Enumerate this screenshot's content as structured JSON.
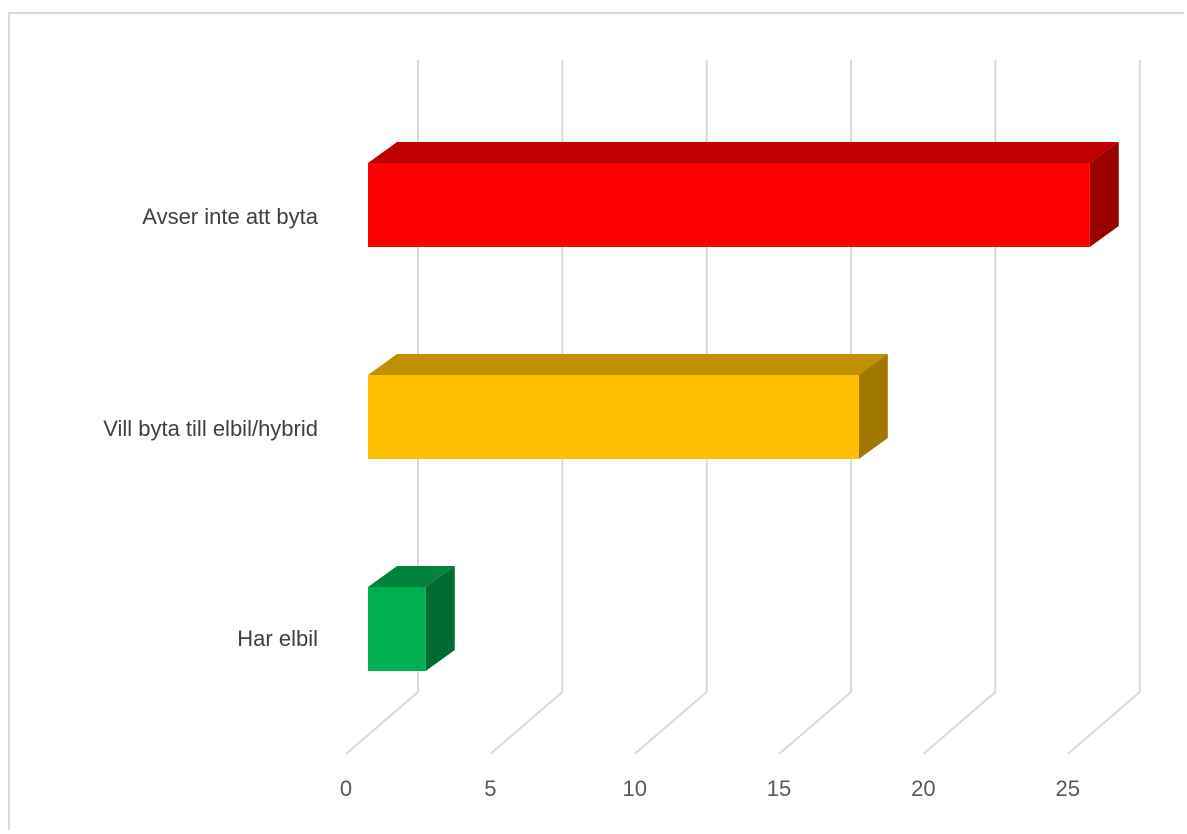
{
  "chart_data": {
    "type": "bar",
    "orientation": "horizontal",
    "style": "3d",
    "categories": [
      "Avser inte att byta",
      "Vill byta till elbil/hybrid",
      "Har elbil"
    ],
    "values": [
      25,
      17,
      2
    ],
    "bar_colors": {
      "front": [
        "#ff0000",
        "#ffc000",
        "#00b050"
      ],
      "top": [
        "#c00000",
        "#bf9000",
        "#00843c"
      ],
      "side": [
        "#990000",
        "#a07800",
        "#006b30"
      ]
    },
    "x_ticks": [
      "0",
      "5",
      "10",
      "15",
      "20",
      "25"
    ],
    "xlim": [
      0,
      25
    ],
    "title": "",
    "xlabel": "",
    "ylabel": "",
    "grid": true,
    "legend": "none"
  }
}
